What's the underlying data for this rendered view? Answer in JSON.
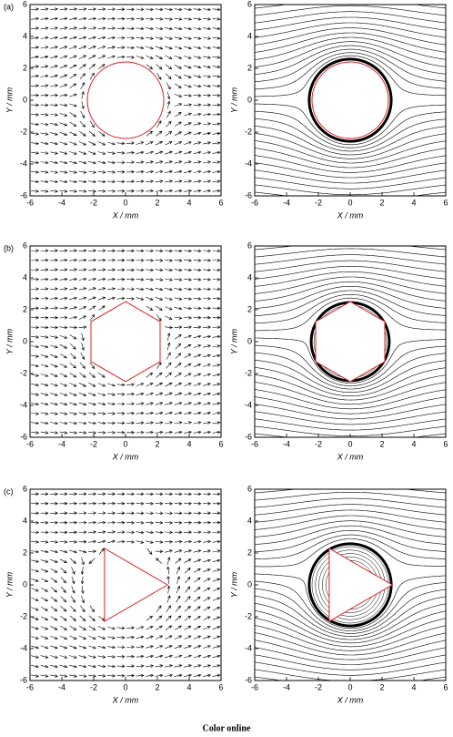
{
  "chart_data": [
    {
      "type": "vector",
      "panel": "(a)",
      "obstacle": "circle",
      "xlabel": "X / mm",
      "ylabel": "Y / mm",
      "xlim": [
        -6,
        6
      ],
      "ylim": [
        -6,
        6
      ],
      "xticks": [
        -6,
        -4,
        -2,
        0,
        2,
        4,
        6
      ],
      "yticks": [
        -6,
        -4,
        -2,
        0,
        2,
        4,
        6
      ]
    },
    {
      "type": "streamline",
      "obstacle": "circle",
      "xlabel": "X / mm",
      "ylabel": "Y / mm",
      "xlim": [
        -6,
        6
      ],
      "ylim": [
        -6,
        6
      ],
      "xticks": [
        -6,
        -4,
        -2,
        0,
        2,
        4,
        6
      ],
      "yticks": [
        -6,
        -4,
        -2,
        0,
        2,
        4,
        6
      ]
    },
    {
      "type": "vector",
      "panel": "(b)",
      "obstacle": "hexagon",
      "xlabel": "X / mm",
      "ylabel": "Y / mm",
      "xlim": [
        -6,
        6
      ],
      "ylim": [
        -6,
        6
      ],
      "xticks": [
        -6,
        -4,
        -2,
        0,
        2,
        4,
        6
      ],
      "yticks": [
        -6,
        -4,
        -2,
        0,
        2,
        4,
        6
      ]
    },
    {
      "type": "streamline",
      "obstacle": "hexagon",
      "xlabel": "X / mm",
      "ylabel": "Y / mm",
      "xlim": [
        -6,
        6
      ],
      "ylim": [
        -6,
        6
      ],
      "xticks": [
        -6,
        -4,
        -2,
        0,
        2,
        4,
        6
      ],
      "yticks": [
        -6,
        -4,
        -2,
        0,
        2,
        4,
        6
      ]
    },
    {
      "type": "vector",
      "panel": "(c)",
      "obstacle": "triangle",
      "xlabel": "X / mm",
      "ylabel": "Y / mm",
      "xlim": [
        -6,
        6
      ],
      "ylim": [
        -6,
        6
      ],
      "xticks": [
        -6,
        -4,
        -2,
        0,
        2,
        4,
        6
      ],
      "yticks": [
        -6,
        -4,
        -2,
        0,
        2,
        4,
        6
      ]
    },
    {
      "type": "streamline",
      "obstacle": "triangle",
      "xlabel": "X / mm",
      "ylabel": "Y / mm",
      "xlim": [
        -6,
        6
      ],
      "ylim": [
        -6,
        6
      ],
      "xticks": [
        -6,
        -4,
        -2,
        0,
        2,
        4,
        6
      ],
      "yticks": [
        -6,
        -4,
        -2,
        0,
        2,
        4,
        6
      ]
    }
  ],
  "caption": "Color online"
}
